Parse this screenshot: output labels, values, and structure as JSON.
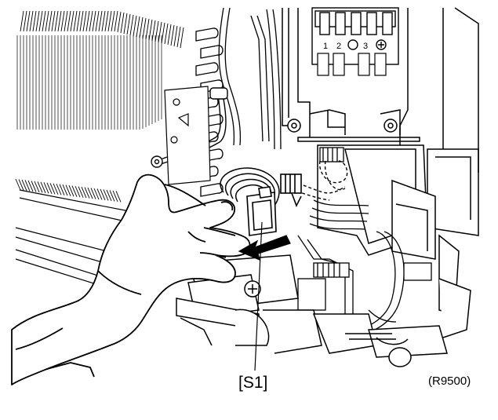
{
  "figure": {
    "callout_label": "[S1]",
    "figure_id": "(R9500)",
    "terminal_labels": [
      "1",
      "2",
      "3"
    ]
  },
  "colors": {
    "line": "#000000",
    "background": "#ffffff",
    "arrow_fill": "#000000"
  }
}
